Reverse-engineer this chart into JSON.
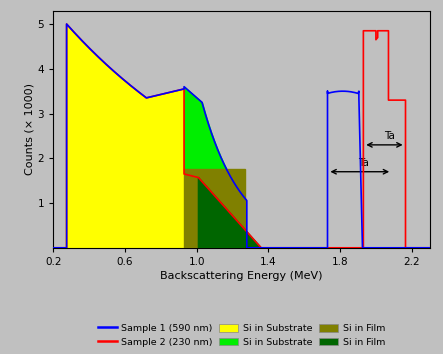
{
  "xlabel": "Backscattering Energy (MeV)",
  "ylabel": "Counts (× 1000)",
  "xlim": [
    0.2,
    2.3
  ],
  "ylim": [
    0,
    5.3
  ],
  "xticks": [
    0.2,
    0.6,
    1.0,
    1.4,
    1.8,
    2.2
  ],
  "yticks": [
    1,
    2,
    3,
    4,
    5
  ],
  "bg_color": "#c0c0c0",
  "plot_bg_color": "#c0c0c0",
  "sample1_color": "#0000ff",
  "sample2_color": "#ff0000",
  "si_substrate_s1_color": "#ffff00",
  "si_substrate_s2_color": "#00ee00",
  "si_film_s1_color": "#808000",
  "si_film_s2_color": "#006600",
  "ta_label1": "Ta",
  "ta_label2": "Ta",
  "ta1_x1": 1.73,
  "ta1_x2": 2.09,
  "ta1_y": 1.7,
  "ta2_x1": 1.93,
  "ta2_x2": 2.165,
  "ta2_y": 2.3,
  "legend_s1_label": "Sample 1 (590 nm)",
  "legend_s2_label": "Sample 2 (230 nm)",
  "legend_sub1_label": "Si in Substrate",
  "legend_sub2_label": "Si in Substrate",
  "legend_film1_label": "Si in Film",
  "legend_film2_label": "Si in Film"
}
